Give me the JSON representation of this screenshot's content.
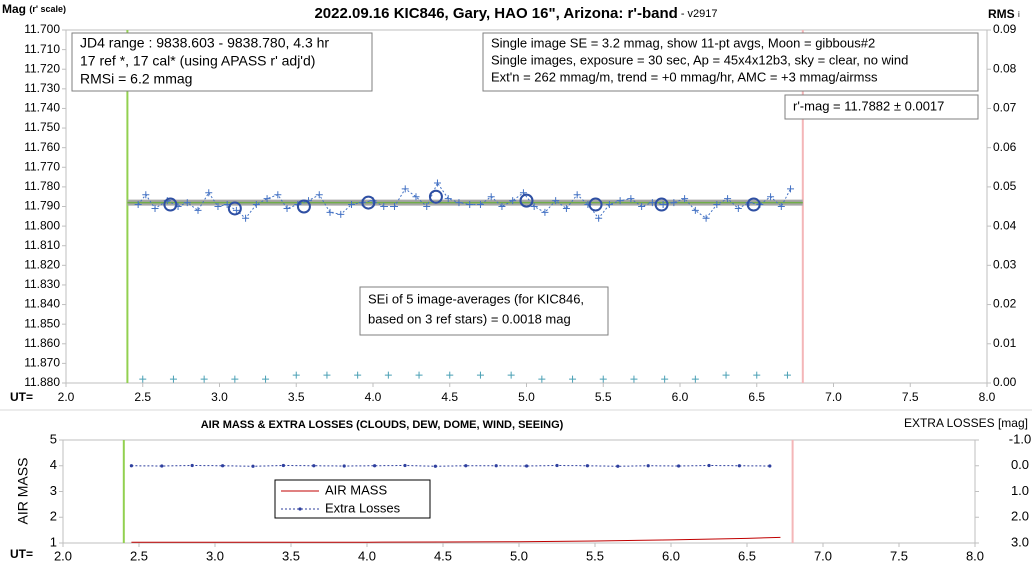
{
  "chart_data": [
    {
      "type": "scatter",
      "title": "2022.09.16 KIC846, Gary, HAO 16\", Arizona: r'-band",
      "subtitle": " - v2917",
      "y_label": "Mag",
      "y_label_note": "(r' scale)",
      "y2_label": "RMS",
      "y2_label_note": "i",
      "x_label": "UT=",
      "xlim": [
        2.0,
        8.0
      ],
      "xticks": [
        {
          "value": 2,
          "label": "2.0"
        },
        2.5,
        {
          "value": 3,
          "label": "3.0"
        },
        3.5,
        {
          "value": 4,
          "label": "4.0"
        },
        4.5,
        {
          "value": 5,
          "label": "5.0"
        },
        5.5,
        {
          "value": 6,
          "label": "6.0"
        },
        6.5,
        {
          "value": 7,
          "label": "7.0"
        },
        7.5,
        {
          "value": 8,
          "label": "8.0"
        }
      ],
      "ylim": [
        11.88,
        11.7
      ],
      "yticks": [
        {
          "value": 11.7,
          "label": "11.700"
        },
        {
          "value": 11.71,
          "label": "11.710"
        },
        {
          "value": 11.72,
          "label": "11.720"
        },
        {
          "value": 11.73,
          "label": "11.730"
        },
        {
          "value": 11.74,
          "label": "11.740"
        },
        {
          "value": 11.75,
          "label": "11.750"
        },
        {
          "value": 11.76,
          "label": "11.760"
        },
        {
          "value": 11.77,
          "label": "11.770"
        },
        {
          "value": 11.78,
          "label": "11.780"
        },
        {
          "value": 11.79,
          "label": "11.790"
        },
        {
          "value": 11.8,
          "label": "11.800"
        },
        {
          "value": 11.81,
          "label": "11.810"
        },
        {
          "value": 11.82,
          "label": "11.820"
        },
        {
          "value": 11.83,
          "label": "11.830"
        },
        {
          "value": 11.84,
          "label": "11.840"
        },
        {
          "value": 11.85,
          "label": "11.850"
        },
        {
          "value": 11.86,
          "label": "11.860"
        },
        {
          "value": 11.87,
          "label": "11.870"
        },
        {
          "value": 11.88,
          "label": "11.880"
        }
      ],
      "y2lim": [
        0,
        0.09
      ],
      "y2ticks": [
        {
          "value": 0,
          "label": "0.00"
        },
        0.01,
        0.02,
        0.03,
        0.04,
        0.05,
        0.06,
        0.07,
        0.08,
        0.09
      ],
      "vlines": [
        {
          "x": 2.4,
          "color": "#92d050"
        },
        {
          "x": 6.8,
          "color": "#f4b6b8"
        }
      ],
      "series": [
        {
          "style": "line",
          "color": "#a6a6a6",
          "width": 6,
          "x": [
            2.4,
            6.8
          ],
          "values": [
            11.788,
            11.788
          ]
        },
        {
          "style": "line",
          "color": "#70ad47",
          "width": 1.5,
          "x": [
            2.4,
            6.8
          ],
          "values": [
            11.788,
            11.788
          ]
        },
        {
          "style": "both",
          "marker": "plus",
          "dash": true,
          "color": "#4472c4",
          "x": [
            2.47,
            2.52,
            2.58,
            2.66,
            2.73,
            2.79,
            2.86,
            2.93,
            2.99,
            3.05,
            3.11,
            3.17,
            3.24,
            3.31,
            3.38,
            3.44,
            3.51,
            3.58,
            3.65,
            3.72,
            3.79,
            3.86,
            3.93,
            4.0,
            4.07,
            4.14,
            4.21,
            4.28,
            4.35,
            4.42,
            4.49,
            4.56,
            4.63,
            4.7,
            4.77,
            4.84,
            4.91,
            4.98,
            5.05,
            5.12,
            5.19,
            5.26,
            5.33,
            5.4,
            5.47,
            5.54,
            5.61,
            5.68,
            5.75,
            5.82,
            5.89,
            5.96,
            6.03,
            6.1,
            6.17,
            6.24,
            6.31,
            6.38,
            6.45,
            6.52,
            6.59,
            6.66,
            6.72
          ],
          "values": [
            11.789,
            11.784,
            11.791,
            11.787,
            11.79,
            11.788,
            11.792,
            11.783,
            11.79,
            11.789,
            11.792,
            11.796,
            11.789,
            11.786,
            11.784,
            11.791,
            11.789,
            11.787,
            11.784,
            11.793,
            11.794,
            11.789,
            11.788,
            11.787,
            11.79,
            11.79,
            11.781,
            11.785,
            11.79,
            11.778,
            11.786,
            11.788,
            11.789,
            11.789,
            11.785,
            11.79,
            11.787,
            11.783,
            11.79,
            11.793,
            11.787,
            11.791,
            11.784,
            11.789,
            11.796,
            11.789,
            11.787,
            11.786,
            11.79,
            11.788,
            11.789,
            11.788,
            11.786,
            11.792,
            11.796,
            11.789,
            11.786,
            11.791,
            11.788,
            11.789,
            11.785,
            11.79,
            11.781
          ]
        },
        {
          "style": "markers",
          "marker": "circle",
          "color": "#2e4fa3",
          "x": [
            2.68,
            3.1,
            3.55,
            3.97,
            4.41,
            5.0,
            5.45,
            5.88,
            6.48
          ],
          "values": [
            11.789,
            11.791,
            11.79,
            11.788,
            11.785,
            11.787,
            11.789,
            11.789,
            11.789
          ]
        },
        {
          "style": "markers",
          "marker": "plus",
          "axis": "y2",
          "color": "#4aa0b5",
          "x": [
            2.5,
            2.7,
            2.9,
            3.1,
            3.3,
            3.5,
            3.7,
            3.9,
            4.1,
            4.3,
            4.5,
            4.7,
            4.9,
            5.1,
            5.3,
            5.5,
            5.7,
            5.9,
            6.1,
            6.3,
            6.5,
            6.7
          ],
          "values": [
            0.001,
            0.001,
            0.001,
            0.001,
            0.001,
            0.002,
            0.002,
            0.002,
            0.002,
            0.002,
            0.002,
            0.002,
            0.002,
            0.001,
            0.001,
            0.001,
            0.001,
            0.001,
            0.001,
            0.002,
            0.002,
            0.002
          ]
        }
      ],
      "annotations": [
        {
          "lines": [
            "JD4 range : 9838.603 - 9838.780,  4.3  hr",
            "17 ref *, 17 cal* (using APASS r' adj'd)",
            "RMSi = 6.2 mmag"
          ]
        },
        {
          "lines": [
            "Single image SE = 3.2 mmag, show  11-pt avgs, Moon = gibbous#2",
            "Single images, exposure = 30 sec, Ap = 45x4x12b3, sky = clear, no wind",
            "Ext'n = 262 mmag/m, trend = +0  mmag/hr, AMC = +3 mmag/airmss"
          ]
        },
        {
          "lines": [
            "r'-mag = 11.7882 ± 0.0017"
          ]
        },
        {
          "lines": [
            "SEi of 5 image-averages (for KIC846,",
            "based on 3 ref stars) = 0.0018 mag"
          ]
        }
      ]
    },
    {
      "type": "line",
      "title": "AIR MASS & EXTRA LOSSES (CLOUDS, DEW, DOME, WIND, SEEING)",
      "y_label": "AIR MASS",
      "y2_label": "EXTRA LOSSES [mag]",
      "x_label": "UT=",
      "xlim": [
        2.0,
        8.0
      ],
      "xticks": [
        {
          "value": 2,
          "label": "2.0"
        },
        2.5,
        {
          "value": 3,
          "label": "3.0"
        },
        3.5,
        {
          "value": 4,
          "label": "4.0"
        },
        4.5,
        {
          "value": 5,
          "label": "5.0"
        },
        5.5,
        {
          "value": 6,
          "label": "6.0"
        },
        6.5,
        {
          "value": 7,
          "label": "7.0"
        },
        7.5,
        {
          "value": 8,
          "label": "8.0"
        }
      ],
      "ylim": [
        1,
        5
      ],
      "yticks": [
        1,
        2,
        3,
        4,
        5
      ],
      "y2lim": [
        3.0,
        -1.0
      ],
      "y2ticks": [
        {
          "value": -1,
          "label": "-1.0"
        },
        {
          "value": 0,
          "label": "0.0"
        },
        {
          "value": 1,
          "label": "1.0"
        },
        {
          "value": 2,
          "label": "2.0"
        },
        {
          "value": 3,
          "label": "3.0"
        }
      ],
      "vlines": [
        {
          "x": 2.4,
          "color": "#92d050"
        },
        {
          "x": 6.8,
          "color": "#f4b6b8"
        }
      ],
      "series": [
        {
          "name": "AIR MASS",
          "style": "line",
          "color": "#c00000",
          "width": 1,
          "x": [
            2.45,
            3.0,
            3.5,
            4.0,
            4.5,
            5.0,
            5.5,
            6.0,
            6.5,
            6.72
          ],
          "values": [
            1.03,
            1.03,
            1.03,
            1.03,
            1.04,
            1.05,
            1.08,
            1.12,
            1.18,
            1.22
          ]
        },
        {
          "name": "Extra Losses",
          "style": "both",
          "marker": "dot",
          "dash": true,
          "axis": "y2",
          "color": "#2e3f9e",
          "x": [
            2.45,
            2.65,
            2.85,
            3.05,
            3.25,
            3.45,
            3.65,
            3.85,
            4.05,
            4.25,
            4.45,
            4.65,
            4.85,
            5.05,
            5.25,
            5.45,
            5.65,
            5.85,
            6.05,
            6.25,
            6.45,
            6.65
          ],
          "values": [
            0.0,
            0.01,
            -0.01,
            0.0,
            0.02,
            -0.01,
            0.0,
            0.01,
            0.0,
            -0.01,
            0.02,
            0.0,
            0.0,
            0.01,
            -0.01,
            0.0,
            0.02,
            0.0,
            0.01,
            -0.01,
            0.0,
            0.01
          ]
        }
      ]
    }
  ]
}
